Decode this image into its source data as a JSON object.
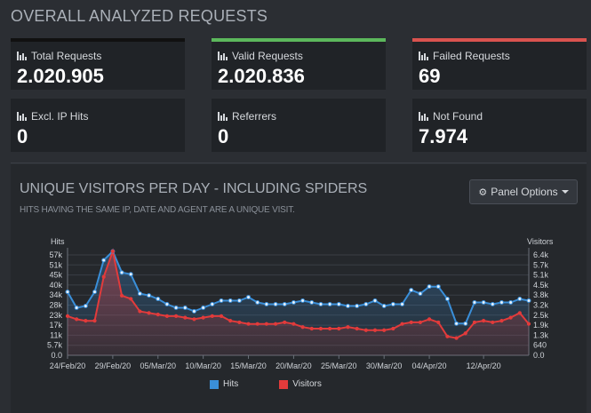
{
  "header": {
    "title": "OVERALL ANALYZED REQUESTS"
  },
  "cards": [
    {
      "label": "Total Requests",
      "value": "2.020.905",
      "accent": "#111111"
    },
    {
      "label": "Valid Requests",
      "value": "2.020.836",
      "accent": "#5cb85c"
    },
    {
      "label": "Failed Requests",
      "value": "69",
      "accent": "#d9534f"
    },
    {
      "label": "Excl. IP Hits",
      "value": "0",
      "accent": ""
    },
    {
      "label": "Referrers",
      "value": "0",
      "accent": ""
    },
    {
      "label": "Not Found",
      "value": "7.974",
      "accent": ""
    }
  ],
  "panel": {
    "title": "UNIQUE VISITORS PER DAY - INCLUDING SPIDERS",
    "subtitle": "HITS HAVING THE SAME IP, DATE AND AGENT ARE A UNIQUE VISIT.",
    "options_label": "Panel Options",
    "options_icon": "gear-icon"
  },
  "chart_data": {
    "type": "line",
    "left_axis_label": "Hits",
    "right_axis_label": "Visitors",
    "left_ticks": [
      "0.0",
      "5.7k",
      "11k",
      "17k",
      "23k",
      "28k",
      "34k",
      "40k",
      "45k",
      "51k",
      "57k"
    ],
    "right_ticks": [
      "0.0",
      "640",
      "1.3k",
      "1.9k",
      "2.5k",
      "3.2k",
      "3.8k",
      "4.5k",
      "5.1k",
      "5.7k",
      "6.4k"
    ],
    "left_max": 57000,
    "right_max": 6400,
    "x_labels": [
      "24/Feb/20",
      "29/Feb/20",
      "05/Mar/20",
      "10/Mar/20",
      "15/Mar/20",
      "20/Mar/20",
      "25/Mar/20",
      "30/Mar/20",
      "04/Apr/20",
      "12/Apr/20"
    ],
    "x_label_index": [
      0,
      5,
      10,
      15,
      20,
      25,
      30,
      35,
      40,
      46
    ],
    "series": [
      {
        "name": "Hits",
        "color": "#3a8fd9",
        "axis": "left",
        "values": [
          36000,
          27000,
          28000,
          36000,
          54000,
          62000,
          47000,
          46000,
          35000,
          34000,
          32000,
          29000,
          27000,
          27000,
          25000,
          27000,
          29000,
          31000,
          31000,
          31000,
          33000,
          30000,
          29000,
          29000,
          29000,
          30000,
          31000,
          30000,
          29000,
          29000,
          29000,
          28000,
          28000,
          29000,
          31000,
          28000,
          29000,
          29000,
          37000,
          35000,
          39000,
          39000,
          32000,
          18000,
          18000,
          30000,
          30000,
          29000,
          30000,
          30000,
          32000,
          31000
        ]
      },
      {
        "name": "Visitors",
        "color": "#e23b3b",
        "axis": "right",
        "values": [
          2500,
          2300,
          2200,
          2200,
          5000,
          7000,
          3800,
          3600,
          2800,
          2700,
          2600,
          2500,
          2500,
          2400,
          2300,
          2400,
          2500,
          2500,
          2200,
          2100,
          2000,
          2000,
          2000,
          2000,
          2100,
          2000,
          1800,
          1700,
          1700,
          1700,
          1700,
          1800,
          1700,
          1600,
          1600,
          1600,
          1700,
          2000,
          2100,
          2100,
          2300,
          2100,
          1200,
          1100,
          1400,
          2100,
          2200,
          2100,
          2200,
          2400,
          2700,
          2000
        ]
      }
    ]
  }
}
